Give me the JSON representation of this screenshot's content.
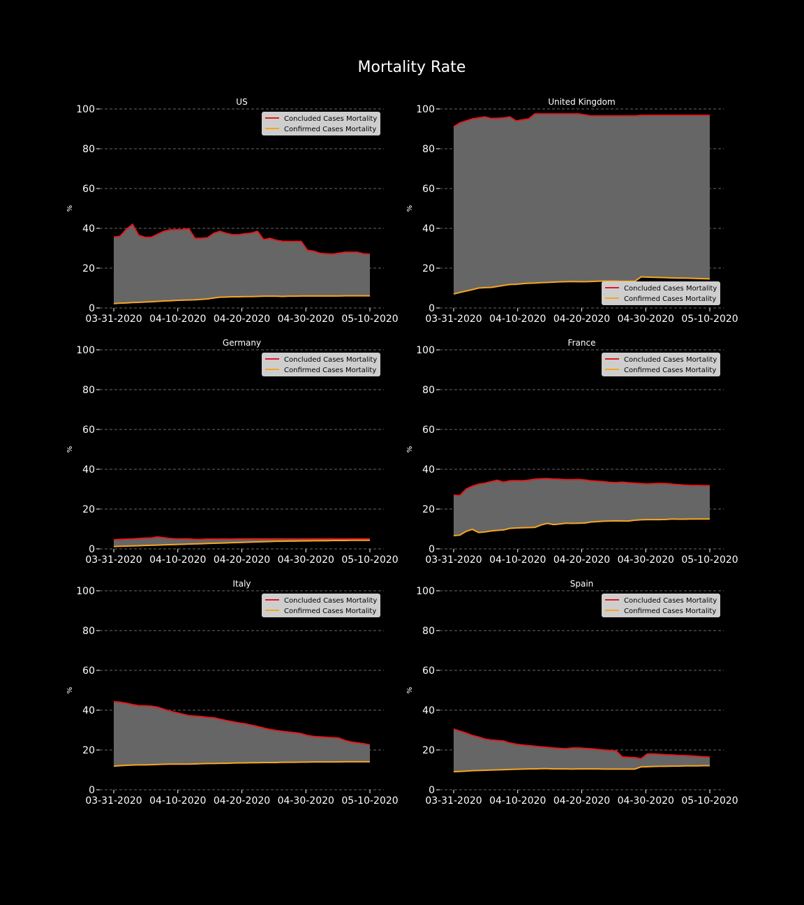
{
  "figure": {
    "title": "Mortality Rate"
  },
  "colors": {
    "background": "#000000",
    "fill": "#666666",
    "concluded": "#e31a1c",
    "confirmed": "#f5a623",
    "text": "#ffffff",
    "grid": "#8c8c8c",
    "legend_bg": "#d9d9d9"
  },
  "chart_data": [
    {
      "type": "area",
      "title": "US",
      "ylabel": "%",
      "ylim": [
        0,
        100
      ],
      "yticks": [
        0,
        20,
        40,
        60,
        80,
        100
      ],
      "xrange": [
        "03-31-2020",
        "05-10-2020"
      ],
      "xticks": [
        "03-31-2020",
        "04-10-2020",
        "04-20-2020",
        "04-30-2020",
        "05-10-2020"
      ],
      "grid": true,
      "legend_position": "upper-right",
      "series": [
        {
          "name": "Concluded Cases Mortality",
          "values": [
            35.6,
            36,
            39.5,
            42,
            36.5,
            35.5,
            35.5,
            37,
            38.5,
            39.2,
            39.3,
            39.4,
            39.8,
            35,
            35,
            35.3,
            37.5,
            38.5,
            37.5,
            36.8,
            36.8,
            37.3,
            37.6,
            38.5,
            34.3,
            35,
            34,
            33.5,
            33.4,
            33.4,
            33.4,
            29,
            28.5,
            27.5,
            27.2,
            27,
            27.5,
            28,
            28,
            28,
            27.2,
            27
          ]
        },
        {
          "name": "Confirmed Cases Mortality",
          "values": [
            2.2,
            2.4,
            2.5,
            2.7,
            2.8,
            3,
            3.1,
            3.3,
            3.5,
            3.6,
            3.8,
            3.9,
            4,
            4.1,
            4.3,
            4.5,
            5,
            5.4,
            5.5,
            5.6,
            5.6,
            5.7,
            5.7,
            5.8,
            5.9,
            5.9,
            5.9,
            5.8,
            5.9,
            5.9,
            6,
            6,
            6,
            6,
            6,
            6,
            6,
            6.1,
            6.1,
            6.1,
            6.1,
            6.1
          ]
        }
      ]
    },
    {
      "type": "area",
      "title": "United Kingdom",
      "ylabel": "%",
      "ylim": [
        0,
        100
      ],
      "yticks": [
        0,
        20,
        40,
        60,
        80,
        100
      ],
      "xrange": [
        "03-31-2020",
        "05-10-2020"
      ],
      "xticks": [
        "03-31-2020",
        "04-10-2020",
        "04-20-2020",
        "04-30-2020",
        "05-10-2020"
      ],
      "grid": true,
      "legend_position": "lower-right",
      "series": [
        {
          "name": "Concluded Cases Mortality",
          "values": [
            91,
            93,
            94,
            95,
            95.5,
            96,
            95.2,
            95.3,
            95.5,
            96,
            94,
            94.5,
            95,
            97.5,
            97.5,
            97.5,
            97.5,
            97.5,
            97.5,
            97.5,
            97.5,
            97,
            96.5,
            96.5,
            96.5,
            96.5,
            96.5,
            96.5,
            96.5,
            96.5,
            96.8,
            96.8,
            96.8,
            96.8,
            96.8,
            96.8,
            96.8,
            96.8,
            96.8,
            96.8,
            96.8,
            96.8
          ]
        },
        {
          "name": "Confirmed Cases Mortality",
          "values": [
            7,
            7.8,
            8.5,
            9.2,
            10,
            10.2,
            10.3,
            10.8,
            11.3,
            11.8,
            11.9,
            12.2,
            12.4,
            12.5,
            12.7,
            12.8,
            13,
            13.1,
            13.2,
            13.3,
            13.2,
            13.2,
            13.3,
            13.4,
            13.5,
            13.5,
            13.5,
            13.4,
            13.4,
            13.4,
            15.6,
            15.5,
            15.4,
            15.3,
            15.2,
            15.1,
            15,
            15,
            14.9,
            14.8,
            14.7,
            14.6
          ]
        }
      ]
    },
    {
      "type": "area",
      "title": "Germany",
      "ylabel": "%",
      "ylim": [
        0,
        100
      ],
      "yticks": [
        0,
        20,
        40,
        60,
        80,
        100
      ],
      "xrange": [
        "03-31-2020",
        "05-10-2020"
      ],
      "xticks": [
        "03-31-2020",
        "04-10-2020",
        "04-20-2020",
        "04-30-2020",
        "05-10-2020"
      ],
      "grid": true,
      "legend_position": "upper-right",
      "series": [
        {
          "name": "Concluded Cases Mortality",
          "values": [
            4.6,
            4.8,
            4.9,
            5,
            5.2,
            5.4,
            5.5,
            6,
            5.6,
            5.2,
            5,
            5,
            5,
            4.8,
            4.8,
            4.9,
            4.9,
            4.9,
            4.9,
            4.9,
            5,
            5,
            5,
            5,
            5,
            5,
            5,
            5,
            5,
            5,
            5,
            5,
            5,
            5,
            5,
            5,
            5,
            5,
            5,
            5,
            5,
            5
          ]
        },
        {
          "name": "Confirmed Cases Mortality",
          "values": [
            1.2,
            1.3,
            1.4,
            1.5,
            1.6,
            1.7,
            1.8,
            1.9,
            2,
            2.1,
            2.2,
            2.3,
            2.4,
            2.5,
            2.6,
            2.7,
            2.8,
            2.9,
            3,
            3.1,
            3.2,
            3.3,
            3.4,
            3.5,
            3.6,
            3.7,
            3.8,
            3.8,
            3.9,
            3.9,
            4,
            4,
            4.1,
            4.1,
            4.1,
            4.2,
            4.2,
            4.2,
            4.3,
            4.3,
            4.3,
            4.3
          ]
        }
      ]
    },
    {
      "type": "area",
      "title": "France",
      "ylabel": "%",
      "ylim": [
        0,
        100
      ],
      "yticks": [
        0,
        20,
        40,
        60,
        80,
        100
      ],
      "xrange": [
        "03-31-2020",
        "05-10-2020"
      ],
      "xticks": [
        "03-31-2020",
        "04-10-2020",
        "04-20-2020",
        "04-30-2020",
        "05-10-2020"
      ],
      "grid": true,
      "legend_position": "upper-right",
      "series": [
        {
          "name": "Concluded Cases Mortality",
          "values": [
            27,
            26.8,
            30,
            31.5,
            32.5,
            33,
            33.8,
            34.5,
            33.5,
            34.2,
            34.3,
            34.2,
            34.5,
            35,
            35.2,
            35.3,
            35.1,
            35,
            34.8,
            34.8,
            34.9,
            34.6,
            34.2,
            34,
            33.8,
            33.4,
            33.3,
            33.5,
            33.2,
            33,
            32.8,
            32.6,
            32.8,
            32.9,
            32.8,
            32.5,
            32.3,
            32,
            31.9,
            31.9,
            31.8,
            31.8
          ]
        },
        {
          "name": "Confirmed Cases Mortality",
          "values": [
            6.6,
            6.9,
            8.8,
            9.8,
            8.2,
            8.5,
            9,
            9.3,
            9.5,
            10.3,
            10.5,
            10.6,
            10.7,
            10.8,
            12,
            12.8,
            12.2,
            12.5,
            12.9,
            12.8,
            12.9,
            13,
            13.5,
            13.7,
            13.9,
            14,
            14.1,
            14,
            14,
            14.4,
            14.6,
            14.7,
            14.7,
            14.7,
            14.8,
            15,
            14.9,
            14.9,
            15,
            15,
            15,
            15
          ]
        }
      ]
    },
    {
      "type": "area",
      "title": "Italy",
      "ylabel": "%",
      "ylim": [
        0,
        100
      ],
      "yticks": [
        0,
        20,
        40,
        60,
        80,
        100
      ],
      "xrange": [
        "03-31-2020",
        "05-10-2020"
      ],
      "xticks": [
        "03-31-2020",
        "04-10-2020",
        "04-20-2020",
        "04-30-2020",
        "05-10-2020"
      ],
      "grid": true,
      "legend_position": "upper-right",
      "series": [
        {
          "name": "Concluded Cases Mortality",
          "values": [
            44.3,
            44,
            43.5,
            42.8,
            42.3,
            42.2,
            42,
            41.5,
            40.5,
            39.5,
            38.8,
            38,
            37.3,
            37,
            36.8,
            36.4,
            36.2,
            35.5,
            34.8,
            34.2,
            33.6,
            33.2,
            32.5,
            31.8,
            31,
            30.3,
            29.8,
            29.4,
            29,
            28.7,
            28.2,
            27.3,
            26.8,
            26.6,
            26.4,
            26.2,
            26,
            24.8,
            24,
            23.6,
            23.1,
            22.6
          ]
        },
        {
          "name": "Confirmed Cases Mortality",
          "values": [
            11.9,
            12.1,
            12.3,
            12.4,
            12.5,
            12.5,
            12.6,
            12.7,
            12.8,
            12.9,
            12.9,
            12.9,
            12.9,
            13,
            13.1,
            13.2,
            13.2,
            13.3,
            13.3,
            13.4,
            13.5,
            13.5,
            13.6,
            13.6,
            13.7,
            13.7,
            13.7,
            13.8,
            13.8,
            13.8,
            13.9,
            13.9,
            14,
            14,
            14,
            14,
            14,
            14.1,
            14.1,
            14.1,
            14.1,
            14.1
          ]
        }
      ]
    },
    {
      "type": "area",
      "title": "Spain",
      "ylabel": "%",
      "ylim": [
        0,
        100
      ],
      "yticks": [
        0,
        20,
        40,
        60,
        80,
        100
      ],
      "xrange": [
        "03-31-2020",
        "05-10-2020"
      ],
      "xticks": [
        "03-31-2020",
        "04-10-2020",
        "04-20-2020",
        "04-30-2020",
        "05-10-2020"
      ],
      "grid": true,
      "legend_position": "upper-right",
      "series": [
        {
          "name": "Concluded Cases Mortality",
          "values": [
            30.5,
            29.5,
            28.5,
            27.3,
            26.5,
            25.5,
            25,
            24.8,
            24.5,
            23.5,
            22.9,
            22.5,
            22.2,
            21.9,
            21.6,
            21.3,
            21,
            20.8,
            20.6,
            21,
            21,
            20.8,
            20.6,
            20.3,
            20,
            19.8,
            19.5,
            16.5,
            16.3,
            16.2,
            15.6,
            18,
            18,
            17.8,
            17.6,
            17.5,
            17.3,
            17.2,
            17,
            16.8,
            16.6,
            16.4
          ]
        },
        {
          "name": "Confirmed Cases Mortality",
          "values": [
            9.1,
            9.2,
            9.4,
            9.6,
            9.7,
            9.8,
            9.9,
            10,
            10.1,
            10.2,
            10.3,
            10.4,
            10.5,
            10.5,
            10.6,
            10.6,
            10.5,
            10.5,
            10.5,
            10.4,
            10.5,
            10.5,
            10.5,
            10.5,
            10.4,
            10.4,
            10.4,
            10.4,
            10.4,
            10.4,
            11.5,
            11.6,
            11.7,
            11.8,
            11.8,
            11.9,
            11.9,
            12,
            12,
            12,
            12.1,
            12.1
          ]
        }
      ]
    }
  ]
}
